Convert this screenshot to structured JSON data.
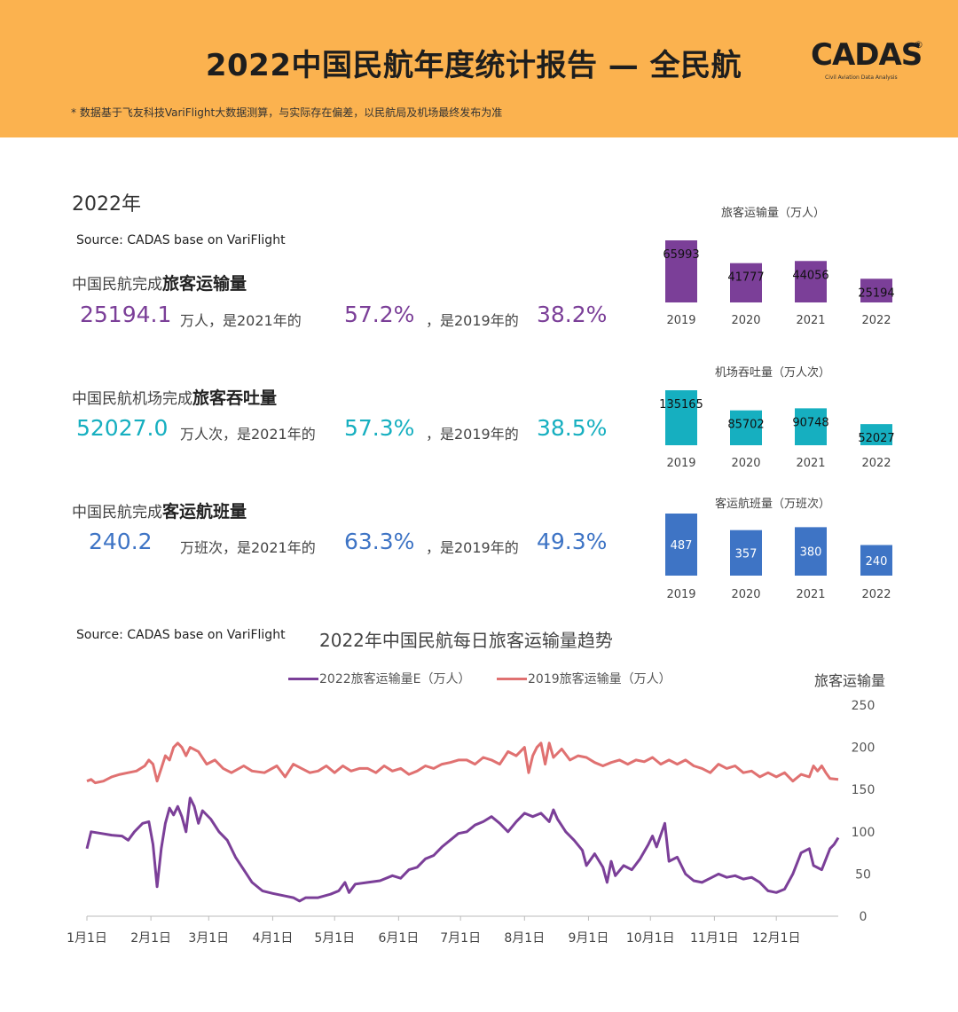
{
  "header": {
    "title": "2022中国民航年度统计报告 — 全民航",
    "note": "* 数据基于飞友科技VariFlight大数据测算，与实际存在偏差，以民航局及机场最终发布为准",
    "logo_text": "CADAS",
    "logo_reg": "®",
    "logo_sub": "Civil Aviation Data Analysis"
  },
  "colors": {
    "header_bg": "#FBB24F",
    "purple": "#7B3F98",
    "teal": "#16AFC0",
    "blue": "#3E74C5",
    "red": "#E07171",
    "line_purple": "#7B3F98"
  },
  "year_label": "2022年",
  "source1": "Source: CADAS base on VariFlight",
  "source2": "Source: CADAS base on VariFlight",
  "metrics": [
    {
      "label_plain": "中国民航完成",
      "label_bold": "旅客运输量",
      "value": "25194.1",
      "unit": "万人，是2021年的",
      "pct2021": "57.2%",
      "mid": "，是2019年的",
      "pct2019": "38.2%"
    },
    {
      "label_plain": "中国民航机场完成",
      "label_bold": "旅客吞吐量",
      "value": "52027.0",
      "unit": "万人次，是2021年的",
      "pct2021": "57.3%",
      "mid": "，是2019年的",
      "pct2019": "38.5%"
    },
    {
      "label_plain": "中国民航完成",
      "label_bold": "客运航班量",
      "value": "240.2",
      "unit": "万班次，是2021年的",
      "pct2021": "63.3%",
      "mid": "，是2019年的",
      "pct2019": "49.3%"
    }
  ],
  "chart_data": [
    {
      "type": "bar",
      "title": "旅客运输量（万人）",
      "categories": [
        "2019",
        "2020",
        "2021",
        "2022"
      ],
      "values": [
        65993,
        41777,
        44056,
        25194
      ]
    },
    {
      "type": "bar",
      "title": "机场吞吐量（万人次）",
      "categories": [
        "2019",
        "2020",
        "2021",
        "2022"
      ],
      "values": [
        135165,
        85702,
        90748,
        52027
      ]
    },
    {
      "type": "bar",
      "title": "客运航班量（万班次）",
      "categories": [
        "2019",
        "2020",
        "2021",
        "2022"
      ],
      "values": [
        487,
        357,
        380,
        240
      ]
    },
    {
      "type": "line",
      "title": "2022年中国民航每日旅客运输量趋势",
      "ylabel": "旅客运输量",
      "ylim": [
        0,
        250
      ],
      "yticks": [
        "0",
        "50",
        "100",
        "150",
        "200",
        "250"
      ],
      "xticks": [
        "1月1日",
        "2月1日",
        "3月1日",
        "4月1日",
        "5月1日",
        "6月1日",
        "7月1日",
        "8月1日",
        "9月1日",
        "10月1日",
        "11月1日",
        "12月1日"
      ],
      "legend_position": "top",
      "series": [
        {
          "name": "2022旅客运输量E（万人）",
          "points": [
            [
              0,
              80
            ],
            [
              2,
              100
            ],
            [
              7,
              98
            ],
            [
              12,
              96
            ],
            [
              17,
              95
            ],
            [
              20,
              90
            ],
            [
              23,
              100
            ],
            [
              27,
              110
            ],
            [
              30,
              112
            ],
            [
              32,
              85
            ],
            [
              33,
              60
            ],
            [
              34,
              35
            ],
            [
              36,
              80
            ],
            [
              38,
              110
            ],
            [
              40,
              128
            ],
            [
              42,
              120
            ],
            [
              44,
              130
            ],
            [
              46,
              118
            ],
            [
              48,
              100
            ],
            [
              50,
              140
            ],
            [
              52,
              130
            ],
            [
              54,
              110
            ],
            [
              56,
              125
            ],
            [
              60,
              115
            ],
            [
              64,
              100
            ],
            [
              68,
              90
            ],
            [
              72,
              70
            ],
            [
              76,
              55
            ],
            [
              80,
              40
            ],
            [
              85,
              30
            ],
            [
              90,
              27
            ],
            [
              96,
              24
            ],
            [
              100,
              22
            ],
            [
              103,
              18
            ],
            [
              106,
              22
            ],
            [
              112,
              22
            ],
            [
              118,
              26
            ],
            [
              122,
              30
            ],
            [
              125,
              40
            ],
            [
              127,
              28
            ],
            [
              130,
              38
            ],
            [
              136,
              40
            ],
            [
              142,
              42
            ],
            [
              148,
              48
            ],
            [
              152,
              45
            ],
            [
              156,
              55
            ],
            [
              160,
              58
            ],
            [
              164,
              68
            ],
            [
              168,
              72
            ],
            [
              172,
              82
            ],
            [
              176,
              90
            ],
            [
              180,
              98
            ],
            [
              184,
              100
            ],
            [
              188,
              108
            ],
            [
              192,
              112
            ],
            [
              196,
              118
            ],
            [
              200,
              110
            ],
            [
              204,
              100
            ],
            [
              208,
              112
            ],
            [
              212,
              122
            ],
            [
              216,
              118
            ],
            [
              220,
              122
            ],
            [
              224,
              112
            ],
            [
              226,
              126
            ],
            [
              228,
              115
            ],
            [
              232,
              100
            ],
            [
              236,
              90
            ],
            [
              240,
              78
            ],
            [
              242,
              60
            ],
            [
              246,
              74
            ],
            [
              250,
              58
            ],
            [
              252,
              40
            ],
            [
              254,
              65
            ],
            [
              256,
              48
            ],
            [
              260,
              60
            ],
            [
              264,
              55
            ],
            [
              268,
              68
            ],
            [
              272,
              85
            ],
            [
              274,
              95
            ],
            [
              276,
              82
            ],
            [
              280,
              110
            ],
            [
              282,
              65
            ],
            [
              286,
              70
            ],
            [
              290,
              50
            ],
            [
              294,
              42
            ],
            [
              298,
              40
            ],
            [
              302,
              45
            ],
            [
              306,
              50
            ],
            [
              310,
              46
            ],
            [
              314,
              48
            ],
            [
              318,
              44
            ],
            [
              322,
              46
            ],
            [
              326,
              40
            ],
            [
              330,
              30
            ],
            [
              334,
              28
            ],
            [
              338,
              32
            ],
            [
              342,
              50
            ],
            [
              346,
              75
            ],
            [
              350,
              80
            ],
            [
              352,
              60
            ],
            [
              356,
              55
            ],
            [
              360,
              80
            ],
            [
              362,
              85
            ],
            [
              364,
              93
            ]
          ]
        },
        {
          "name": "2019旅客运输量（万人）",
          "points": [
            [
              0,
              160
            ],
            [
              2,
              162
            ],
            [
              4,
              158
            ],
            [
              8,
              160
            ],
            [
              12,
              165
            ],
            [
              16,
              168
            ],
            [
              20,
              170
            ],
            [
              24,
              172
            ],
            [
              28,
              178
            ],
            [
              30,
              185
            ],
            [
              32,
              180
            ],
            [
              34,
              160
            ],
            [
              36,
              175
            ],
            [
              38,
              190
            ],
            [
              40,
              185
            ],
            [
              42,
              200
            ],
            [
              44,
              205
            ],
            [
              46,
              200
            ],
            [
              48,
              190
            ],
            [
              50,
              200
            ],
            [
              54,
              195
            ],
            [
              58,
              180
            ],
            [
              62,
              185
            ],
            [
              66,
              175
            ],
            [
              70,
              170
            ],
            [
              76,
              178
            ],
            [
              80,
              172
            ],
            [
              86,
              170
            ],
            [
              92,
              178
            ],
            [
              96,
              165
            ],
            [
              100,
              180
            ],
            [
              104,
              175
            ],
            [
              108,
              170
            ],
            [
              112,
              172
            ],
            [
              116,
              178
            ],
            [
              120,
              170
            ],
            [
              124,
              178
            ],
            [
              128,
              172
            ],
            [
              132,
              175
            ],
            [
              136,
              175
            ],
            [
              140,
              170
            ],
            [
              144,
              178
            ],
            [
              148,
              172
            ],
            [
              152,
              175
            ],
            [
              156,
              168
            ],
            [
              160,
              172
            ],
            [
              164,
              178
            ],
            [
              168,
              175
            ],
            [
              172,
              180
            ],
            [
              176,
              182
            ],
            [
              180,
              185
            ],
            [
              184,
              185
            ],
            [
              188,
              180
            ],
            [
              192,
              188
            ],
            [
              196,
              185
            ],
            [
              200,
              180
            ],
            [
              204,
              195
            ],
            [
              208,
              190
            ],
            [
              212,
              200
            ],
            [
              214,
              170
            ],
            [
              216,
              190
            ],
            [
              218,
              200
            ],
            [
              220,
              205
            ],
            [
              222,
              180
            ],
            [
              224,
              205
            ],
            [
              226,
              188
            ],
            [
              230,
              198
            ],
            [
              234,
              185
            ],
            [
              238,
              190
            ],
            [
              242,
              188
            ],
            [
              246,
              182
            ],
            [
              250,
              178
            ],
            [
              254,
              182
            ],
            [
              258,
              185
            ],
            [
              262,
              180
            ],
            [
              266,
              185
            ],
            [
              270,
              183
            ],
            [
              274,
              188
            ],
            [
              278,
              180
            ],
            [
              282,
              185
            ],
            [
              286,
              180
            ],
            [
              290,
              185
            ],
            [
              294,
              178
            ],
            [
              298,
              175
            ],
            [
              302,
              170
            ],
            [
              306,
              180
            ],
            [
              310,
              175
            ],
            [
              314,
              178
            ],
            [
              318,
              170
            ],
            [
              322,
              172
            ],
            [
              326,
              165
            ],
            [
              330,
              170
            ],
            [
              334,
              165
            ],
            [
              338,
              170
            ],
            [
              342,
              160
            ],
            [
              346,
              168
            ],
            [
              350,
              165
            ],
            [
              352,
              178
            ],
            [
              354,
              172
            ],
            [
              356,
              178
            ],
            [
              358,
              170
            ],
            [
              360,
              163
            ],
            [
              364,
              162
            ]
          ]
        }
      ]
    }
  ]
}
